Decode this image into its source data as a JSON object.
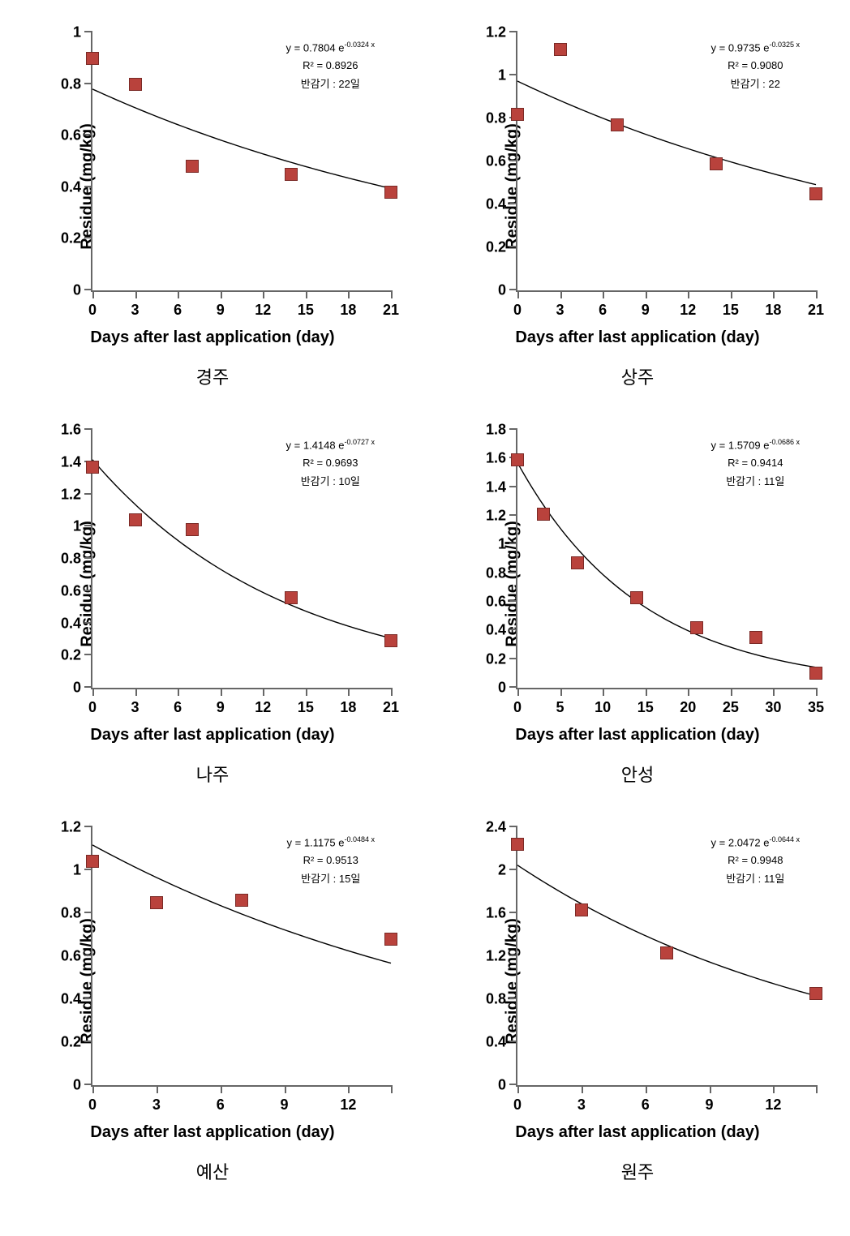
{
  "global": {
    "background_color": "#ffffff",
    "axis_color": "#666666",
    "tick_color": "#666666",
    "text_color": "#000000",
    "marker_color": "#b9423c",
    "marker_border": "#7a2a26",
    "marker_size": 14,
    "line_color": "#000000",
    "line_width": 1.4,
    "y_axis_label": "Residue (mg/kg)",
    "x_axis_label": "Days after last application (day)",
    "axis_label_fontsize": 20,
    "tick_label_fontsize": 18,
    "anno_fontsize": 13,
    "caption_fontsize": 22,
    "font_weight_axes": "bold"
  },
  "charts": [
    {
      "caption": "경주",
      "xlim": [
        0,
        21
      ],
      "xticks": [
        0,
        3,
        6,
        9,
        12,
        15,
        18,
        21
      ],
      "ylim": [
        0,
        1.0
      ],
      "yticks": [
        0,
        0.2,
        0.4,
        0.6,
        0.8,
        1.0
      ],
      "ytick_labels": [
        "0",
        "0.2",
        "0.4",
        "0.6",
        "0.8",
        "1"
      ],
      "points": [
        [
          0,
          0.9
        ],
        [
          3,
          0.8
        ],
        [
          7,
          0.48
        ],
        [
          14,
          0.45
        ],
        [
          21,
          0.38
        ]
      ],
      "fit": {
        "a": 0.7804,
        "b": 0.0324
      },
      "anno_eq_prefix": "y = 0.7804  e",
      "anno_eq_exp": "-0.0324 x",
      "anno_r2": "R² = 0.8926",
      "anno_half": "반감기 : 22일"
    },
    {
      "caption": "상주",
      "xlim": [
        0,
        21
      ],
      "xticks": [
        0,
        3,
        6,
        9,
        12,
        15,
        18,
        21
      ],
      "ylim": [
        0,
        1.2
      ],
      "yticks": [
        0,
        0.2,
        0.4,
        0.6,
        0.8,
        1.0,
        1.2
      ],
      "ytick_labels": [
        "0",
        "0.2",
        "0.4",
        "0.6",
        "0.8",
        "1",
        "1.2"
      ],
      "points": [
        [
          0,
          0.82
        ],
        [
          3,
          1.12
        ],
        [
          7,
          0.77
        ],
        [
          14,
          0.59
        ],
        [
          21,
          0.45
        ]
      ],
      "fit": {
        "a": 0.9735,
        "b": 0.0325
      },
      "anno_eq_prefix": "y = 0.9735  e",
      "anno_eq_exp": "-0.0325 x",
      "anno_r2": "R² = 0.9080",
      "anno_half": "반감기 : 22"
    },
    {
      "caption": "나주",
      "xlim": [
        0,
        21
      ],
      "xticks": [
        0,
        3,
        6,
        9,
        12,
        15,
        18,
        21
      ],
      "ylim": [
        0,
        1.6
      ],
      "yticks": [
        0,
        0.2,
        0.4,
        0.6,
        0.8,
        1.0,
        1.2,
        1.4,
        1.6
      ],
      "ytick_labels": [
        "0",
        "0.2",
        "0.4",
        "0.6",
        "0.8",
        "1",
        "1.2",
        "1.4",
        "1.6"
      ],
      "points": [
        [
          0,
          1.37
        ],
        [
          3,
          1.04
        ],
        [
          7,
          0.98
        ],
        [
          14,
          0.56
        ],
        [
          21,
          0.29
        ]
      ],
      "fit": {
        "a": 1.4148,
        "b": 0.0727
      },
      "anno_eq_prefix": "y = 1.4148  e",
      "anno_eq_exp": "-0.0727 x",
      "anno_r2": "R² = 0.9693",
      "anno_half": "반감기 : 10일"
    },
    {
      "caption": "안성",
      "xlim": [
        0,
        35
      ],
      "xticks": [
        0,
        5,
        10,
        15,
        20,
        25,
        30,
        35
      ],
      "ylim": [
        0,
        1.8
      ],
      "yticks": [
        0,
        0.2,
        0.4,
        0.6,
        0.8,
        1.0,
        1.2,
        1.4,
        1.6,
        1.8
      ],
      "ytick_labels": [
        "0",
        "0.2",
        "0.4",
        "0.6",
        "0.8",
        "1",
        "1.2",
        "1.4",
        "1.6",
        "1.8"
      ],
      "points": [
        [
          0,
          1.59
        ],
        [
          3,
          1.21
        ],
        [
          7,
          0.87
        ],
        [
          14,
          0.63
        ],
        [
          21,
          0.42
        ],
        [
          28,
          0.35
        ],
        [
          35,
          0.1
        ]
      ],
      "fit": {
        "a": 1.5709,
        "b": 0.0686
      },
      "anno_eq_prefix": "y = 1.5709  e",
      "anno_eq_exp": "-0.0686 x",
      "anno_r2": "R² = 0.9414",
      "anno_half": "반감기 : 11일"
    },
    {
      "caption": "예산",
      "xlim": [
        0,
        14
      ],
      "xticks": [
        0,
        3,
        6,
        9,
        12,
        14
      ],
      "xtick_labels": [
        "0",
        "3",
        "6",
        "9",
        "12",
        ""
      ],
      "ylim": [
        0,
        1.2
      ],
      "yticks": [
        0,
        0.2,
        0.4,
        0.6,
        0.8,
        1.0,
        1.2
      ],
      "ytick_labels": [
        "0",
        "0.2",
        "0.4",
        "0.6",
        "0.8",
        "1",
        "1.2"
      ],
      "points": [
        [
          0,
          1.04
        ],
        [
          3,
          0.85
        ],
        [
          7,
          0.86
        ],
        [
          14,
          0.68
        ]
      ],
      "fit": {
        "a": 1.1175,
        "b": 0.0484
      },
      "anno_eq_prefix": "y = 1.1175  e",
      "anno_eq_exp": "-0.0484 x",
      "anno_r2": "R² = 0.9513",
      "anno_half": "반감기 : 15일"
    },
    {
      "caption": "원주",
      "xlim": [
        0,
        14
      ],
      "xticks": [
        0,
        3,
        6,
        9,
        12,
        14
      ],
      "xtick_labels": [
        "0",
        "3",
        "6",
        "9",
        "12",
        ""
      ],
      "ylim": [
        0,
        2.4
      ],
      "yticks": [
        0,
        0.4,
        0.8,
        1.2,
        1.6,
        2.0,
        2.4
      ],
      "ytick_labels": [
        "0",
        "0.4",
        "0.8",
        "1.2",
        "1.6",
        "2",
        "2.4"
      ],
      "points": [
        [
          0,
          2.24
        ],
        [
          3,
          1.63
        ],
        [
          7,
          1.23
        ],
        [
          14,
          0.85
        ]
      ],
      "fit": {
        "a": 2.0472,
        "b": 0.0644
      },
      "anno_eq_prefix": "y = 2.0472  e",
      "anno_eq_exp": "-0.0644 x",
      "anno_r2": "R² = 0.9948",
      "anno_half": "반감기 : 11일"
    }
  ]
}
